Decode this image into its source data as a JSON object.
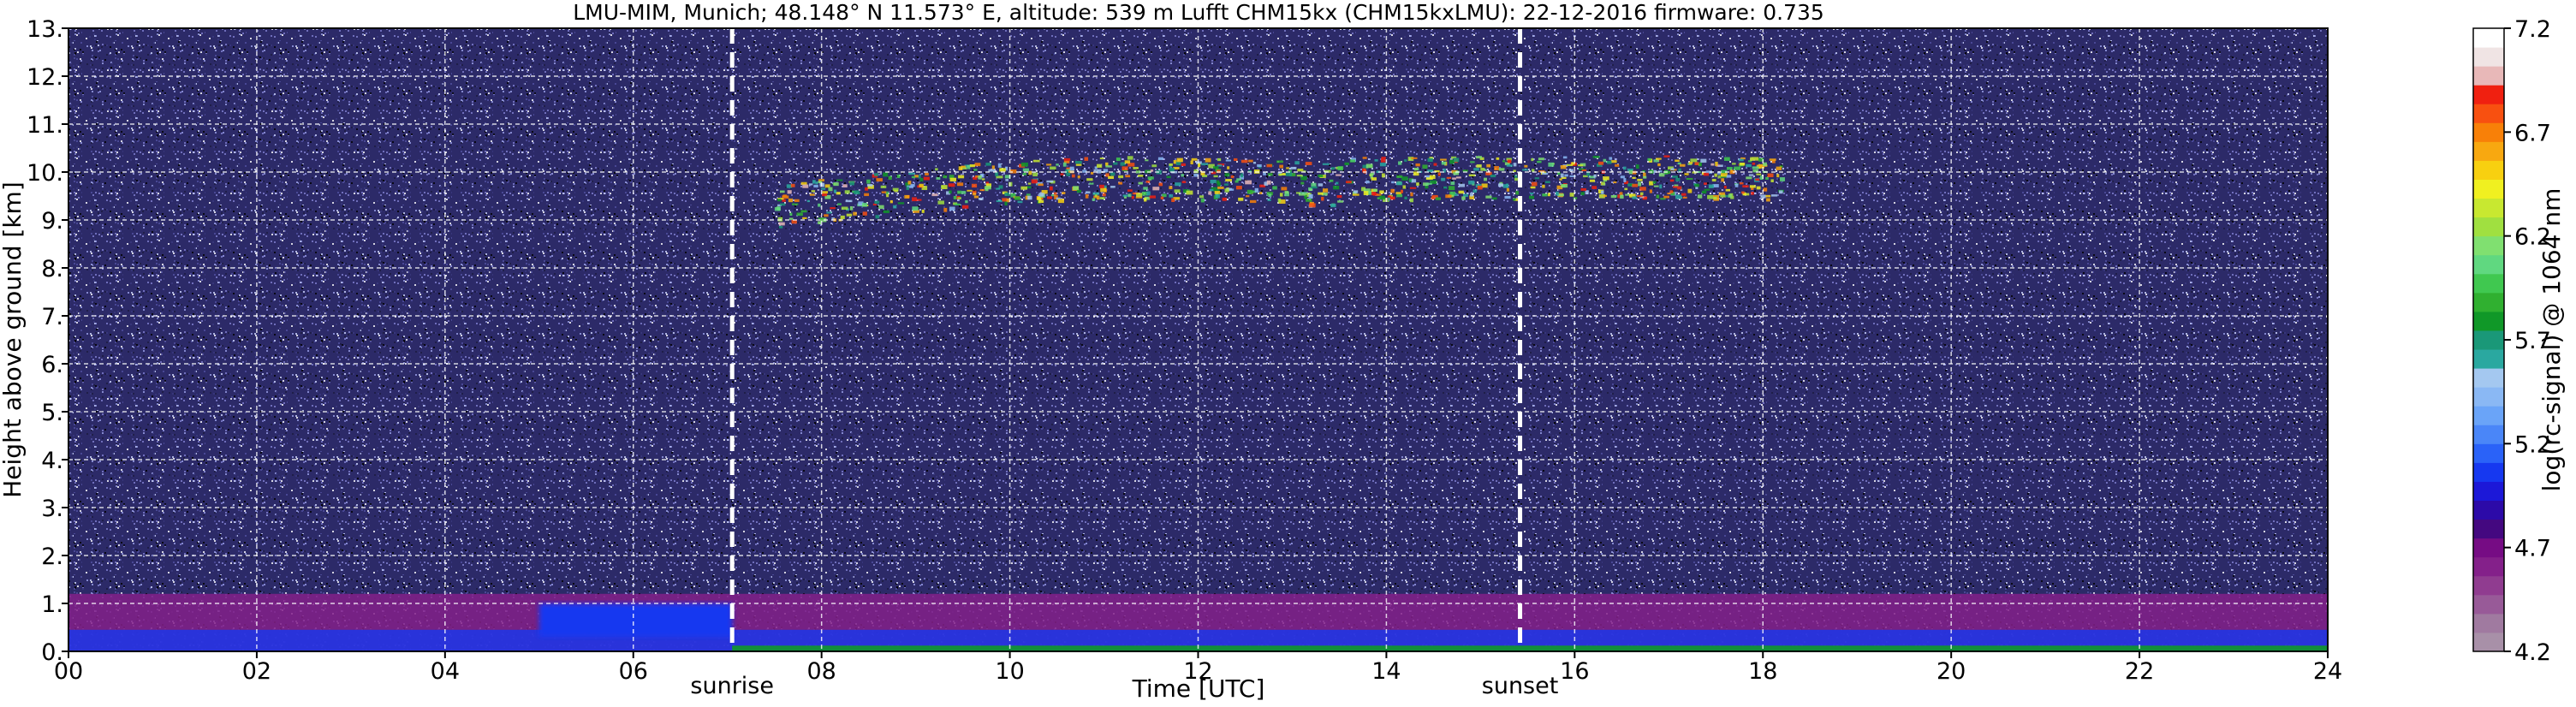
{
  "chart_data": {
    "type": "heatmap",
    "title": "LMU-MIM, Munich; 48.148° N 11.573° E, altitude: 539 m    Lufft CHM15kx (CHM15kxLMU): 22-12-2016    firmware: 0.735",
    "xlabel": "Time [UTC]",
    "ylabel": "Height above ground [km]",
    "xlim": [
      0,
      24
    ],
    "ylim": [
      0,
      13
    ],
    "x_ticks": [
      "00",
      "02",
      "04",
      "06",
      "08",
      "10",
      "12",
      "14",
      "16",
      "18",
      "20",
      "22",
      "24"
    ],
    "y_ticks": [
      "0.",
      "1.",
      "2.",
      "3.",
      "4.",
      "5.",
      "6.",
      "7.",
      "8.",
      "9.",
      "10.",
      "11.",
      "12.",
      "13."
    ],
    "grid": true,
    "events": [
      {
        "label": "sunrise",
        "time": 7.05
      },
      {
        "label": "sunset",
        "time": 15.42
      }
    ],
    "colorbar": {
      "label": "log(rc-signal) @ 1064 nm",
      "range": [
        4.2,
        7.2
      ],
      "ticks": [
        "4.2",
        "4.7",
        "5.2",
        "5.7",
        "6.2",
        "6.7",
        "7.2"
      ],
      "colors": [
        "#a890a8",
        "#a07aa0",
        "#985a98",
        "#903c90",
        "#84208a",
        "#760c84",
        "#440880",
        "#2c0aa8",
        "#1c18d8",
        "#1638f0",
        "#2a62f8",
        "#4a86f8",
        "#6aa4f8",
        "#8ab8f4",
        "#a4c8f0",
        "#2aa8a0",
        "#1a9878",
        "#109828",
        "#30b030",
        "#40c850",
        "#60d880",
        "#80e070",
        "#a0e040",
        "#c8e830",
        "#f0f020",
        "#f8d010",
        "#f8a810",
        "#f88008",
        "#f85010",
        "#f02010",
        "#e8b8b8",
        "#f0e4e4",
        "#ffffff"
      ]
    },
    "features": [
      {
        "type": "cirrus",
        "time_range": [
          7.5,
          18.2
        ],
        "height_range_km": [
          8.4,
          10.5
        ],
        "signal_range": [
          5.4,
          7.0
        ]
      },
      {
        "type": "boundary_layer",
        "time_range": [
          0,
          24
        ],
        "height_range_km": [
          0,
          1.2
        ],
        "signal_range": [
          4.2,
          5.5
        ]
      },
      {
        "type": "residual_layer",
        "time_range": [
          5.0,
          7.05
        ],
        "height_range_km": [
          0.3,
          1.0
        ],
        "signal_range": [
          4.9,
          5.3
        ]
      },
      {
        "type": "noise_background",
        "time_range": [
          0,
          24
        ],
        "height_range_km": [
          1.2,
          13
        ],
        "signal_range": [
          4.3,
          5.3
        ]
      }
    ]
  }
}
